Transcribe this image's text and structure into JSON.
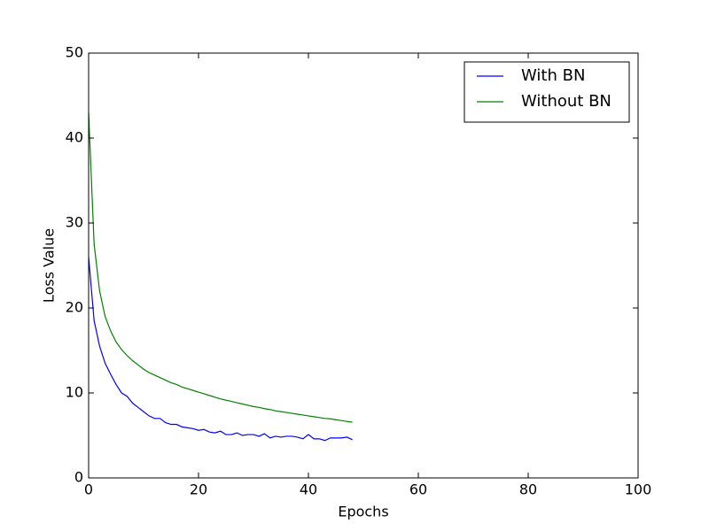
{
  "chart_data": {
    "type": "line",
    "xlabel": "Epochs",
    "ylabel": "Loss Value",
    "x": [
      0,
      1,
      2,
      3,
      4,
      5,
      6,
      7,
      8,
      9,
      10,
      11,
      12,
      13,
      14,
      15,
      16,
      17,
      18,
      19,
      20,
      21,
      22,
      23,
      24,
      25,
      26,
      27,
      28,
      29,
      30,
      31,
      32,
      33,
      34,
      35,
      36,
      37,
      38,
      39,
      40,
      41,
      42,
      43,
      44,
      45,
      46,
      47,
      48
    ],
    "series": [
      {
        "name": "With BN",
        "color": "#0000ff",
        "values": [
          26,
          18.5,
          15.5,
          13.5,
          12.2,
          11,
          10,
          9.6,
          8.8,
          8.3,
          7.8,
          7.3,
          7.0,
          7.0,
          6.5,
          6.3,
          6.3,
          6.0,
          5.9,
          5.8,
          5.6,
          5.7,
          5.4,
          5.3,
          5.5,
          5.1,
          5.1,
          5.3,
          5.0,
          5.1,
          5.1,
          4.9,
          5.2,
          4.7,
          4.9,
          4.8,
          4.9,
          4.9,
          4.8,
          4.6,
          5.1,
          4.6,
          4.6,
          4.4,
          4.7,
          4.7,
          4.7,
          4.8,
          4.5
        ]
      },
      {
        "name": "Without BN",
        "color": "#008000",
        "values": [
          43,
          27.5,
          22,
          19,
          17.3,
          16,
          15.1,
          14.4,
          13.8,
          13.3,
          12.8,
          12.4,
          12.1,
          11.8,
          11.5,
          11.2,
          11.0,
          10.7,
          10.5,
          10.3,
          10.1,
          9.9,
          9.7,
          9.5,
          9.3,
          9.15,
          9.0,
          8.85,
          8.7,
          8.55,
          8.4,
          8.3,
          8.15,
          8.05,
          7.9,
          7.8,
          7.7,
          7.6,
          7.5,
          7.4,
          7.3,
          7.2,
          7.1,
          7.0,
          6.95,
          6.85,
          6.75,
          6.65,
          6.55
        ]
      }
    ],
    "xlim": [
      0,
      100
    ],
    "xticks": [
      0,
      20,
      40,
      60,
      80,
      100
    ],
    "ylim": [
      0,
      50
    ],
    "yticks": [
      0,
      10,
      20,
      30,
      40,
      50
    ],
    "legend": "upper right"
  }
}
